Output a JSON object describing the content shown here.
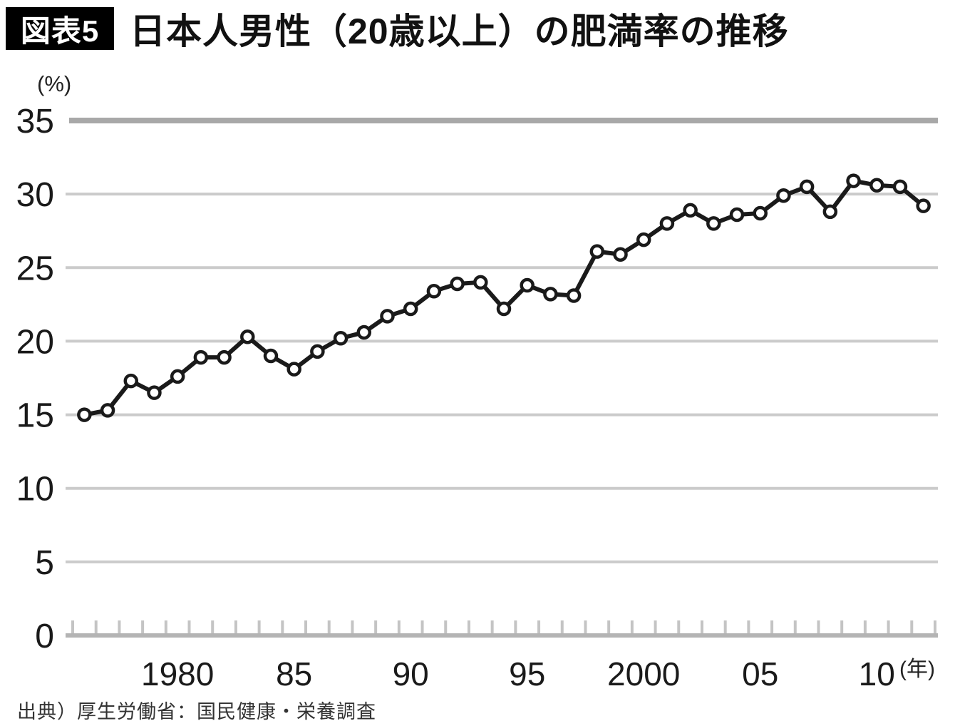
{
  "header": {
    "badge": "図表5",
    "title": "日本人男性（20歳以上）の肥満率の推移"
  },
  "source": "出典）厚生労働省：国民健康・栄養調査",
  "colors": {
    "line": "#1a1a1a",
    "marker_fill": "#ffffff",
    "grid_minor": "#cbcbcb",
    "grid_top": "#a8a8a8",
    "axis": "#b4b4b4",
    "tick": "#c4c4c4",
    "label": "#1a1a1a"
  },
  "chart_data": {
    "type": "line",
    "title": "日本人男性（20歳以上）の肥満率の推移",
    "series_name": "肥満率",
    "ylabel": "(%)",
    "xlabel": "(年)",
    "ylim": [
      0,
      35
    ],
    "yticks": [
      0,
      5,
      10,
      15,
      20,
      25,
      30,
      35
    ],
    "grid": "horizontal",
    "legend": "none",
    "marker": "open-circle",
    "x": [
      1976,
      1977,
      1978,
      1979,
      1980,
      1981,
      1982,
      1983,
      1984,
      1985,
      1986,
      1987,
      1988,
      1989,
      1990,
      1991,
      1992,
      1993,
      1994,
      1995,
      1996,
      1997,
      1998,
      1999,
      2000,
      2001,
      2002,
      2003,
      2004,
      2005,
      2006,
      2007,
      2008,
      2009,
      2010,
      2011,
      2012
    ],
    "values": [
      15.0,
      15.3,
      17.3,
      16.5,
      17.6,
      18.9,
      18.9,
      20.3,
      19.0,
      18.1,
      19.3,
      20.2,
      20.6,
      21.7,
      22.2,
      23.4,
      23.9,
      24.0,
      22.2,
      23.8,
      23.2,
      23.1,
      26.1,
      25.9,
      26.9,
      28.0,
      28.9,
      28.0,
      28.6,
      28.7,
      29.9,
      30.5,
      28.8,
      30.9,
      30.6,
      30.5,
      29.2
    ],
    "xtick_labels": [
      {
        "year": 1980,
        "label": "1980"
      },
      {
        "year": 1985,
        "label": "85"
      },
      {
        "year": 1990,
        "label": "90"
      },
      {
        "year": 1995,
        "label": "95"
      },
      {
        "year": 2000,
        "label": "2000"
      },
      {
        "year": 2005,
        "label": "05"
      },
      {
        "year": 2010,
        "label": "10"
      }
    ]
  }
}
